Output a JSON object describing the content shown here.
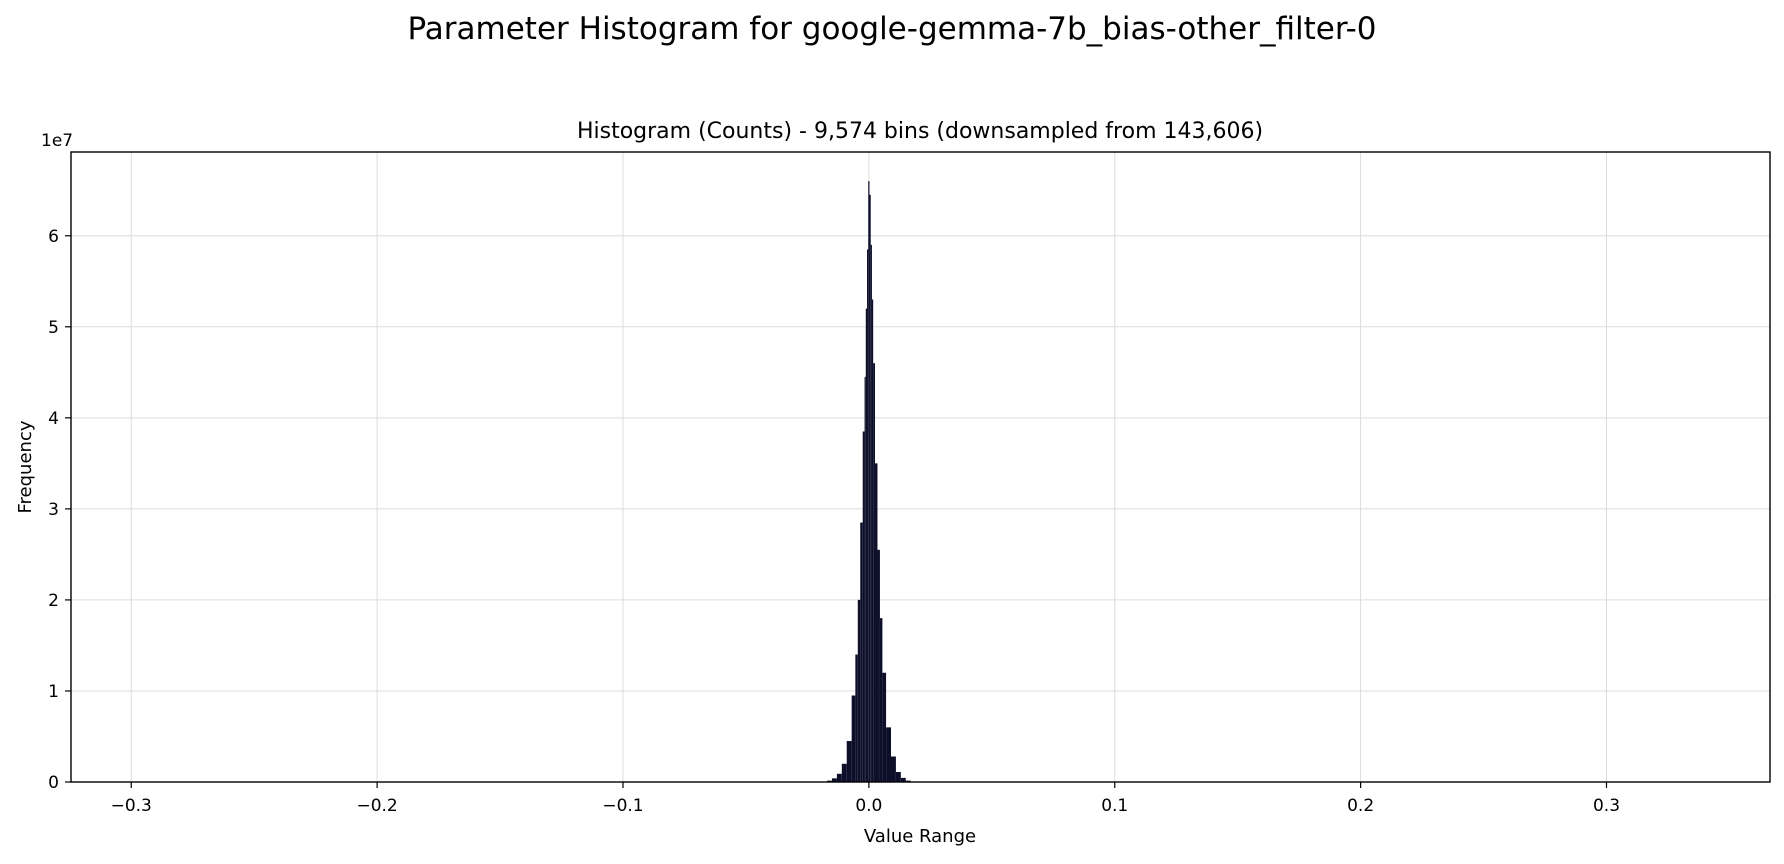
{
  "chart_data": {
    "type": "bar",
    "suptitle": "Parameter Histogram for google-gemma-7b_bias-other_filter-0",
    "title": "Histogram (Counts) - 9,574 bins (downsampled from 143,606)",
    "xlabel": "Value Range",
    "ylabel": "Frequency",
    "y_offset_label": "1e7",
    "y_multiplier": 10000000,
    "xlim": [
      -0.3245,
      0.3665
    ],
    "ylim": [
      0,
      69200000
    ],
    "x_ticks": [
      {
        "value": -0.3,
        "label": "−0.3"
      },
      {
        "value": -0.2,
        "label": "−0.2"
      },
      {
        "value": -0.1,
        "label": "−0.1"
      },
      {
        "value": 0.0,
        "label": "0.0"
      },
      {
        "value": 0.1,
        "label": "0.1"
      },
      {
        "value": 0.2,
        "label": "0.2"
      },
      {
        "value": 0.3,
        "label": "0.3"
      }
    ],
    "y_ticks": [
      {
        "value": 0,
        "label": "0"
      },
      {
        "value": 10000000,
        "label": "1"
      },
      {
        "value": 20000000,
        "label": "2"
      },
      {
        "value": 30000000,
        "label": "3"
      },
      {
        "value": 40000000,
        "label": "4"
      },
      {
        "value": 50000000,
        "label": "5"
      },
      {
        "value": 60000000,
        "label": "6"
      }
    ],
    "grid": true,
    "bar_color": "#0d0f2a",
    "x": [
      -0.018,
      -0.016,
      -0.014,
      -0.012,
      -0.01,
      -0.008,
      -0.006,
      -0.005,
      -0.004,
      -0.003,
      -0.002,
      -0.0015,
      -0.001,
      -0.0005,
      0.0,
      0.0005,
      0.001,
      0.0015,
      0.002,
      0.003,
      0.004,
      0.005,
      0.006,
      0.008,
      0.01,
      0.012,
      0.014,
      0.016,
      0.018
    ],
    "values": [
      50000,
      150000,
      400000,
      900000,
      2000000,
      4500000,
      9500000,
      14000000,
      20000000,
      28500000,
      38500000,
      44500000,
      52000000,
      58500000,
      66000000,
      64500000,
      59000000,
      53000000,
      46000000,
      35000000,
      25500000,
      18000000,
      12000000,
      6000000,
      2800000,
      1100000,
      450000,
      150000,
      50000
    ]
  }
}
